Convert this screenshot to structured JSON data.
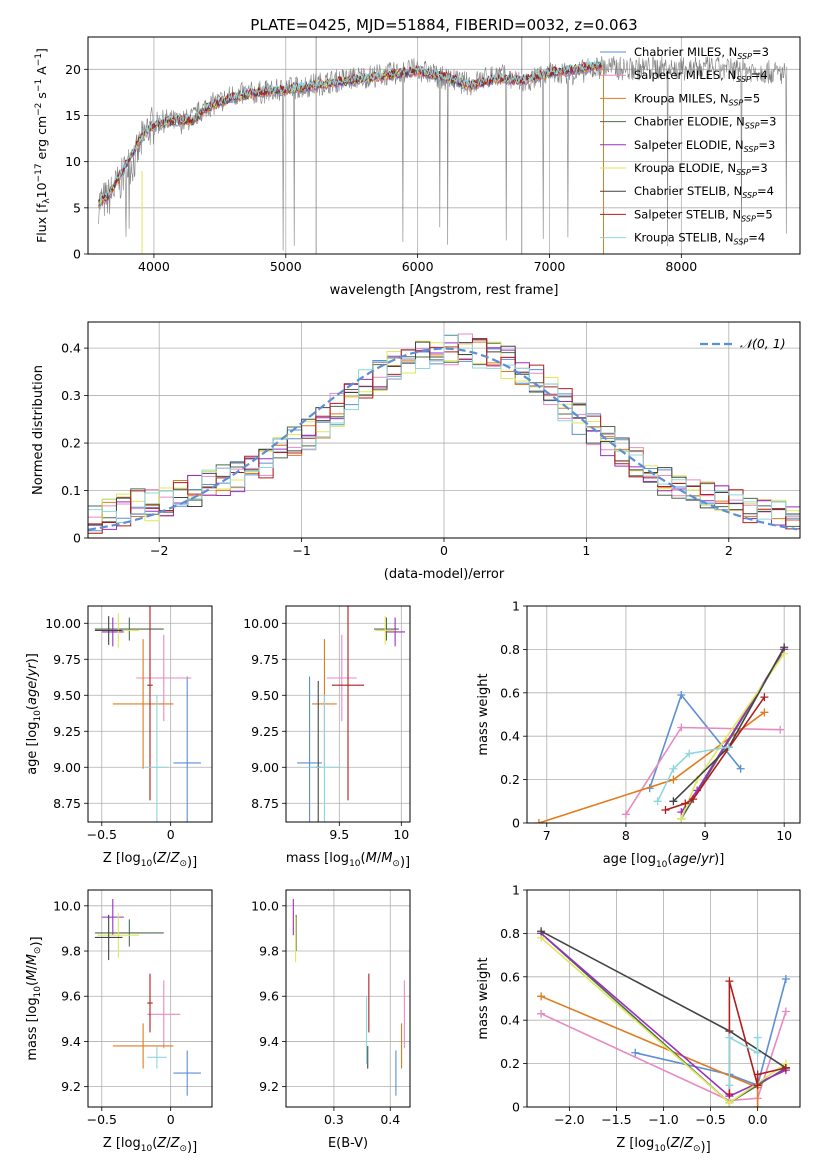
{
  "figure": {
    "title": "PLATE=0425, MJD=51884, FIBERID=0032, z=0.063",
    "colors": {
      "Chabrier MILES": "#5b8fd6",
      "Salpeter MILES": "#e88ac2",
      "Kroupa MILES": "#e07b1e",
      "Chabrier ELODIE": "#4f6b4f",
      "Salpeter ELODIE": "#9a2fc0",
      "Kroupa ELODIE": "#dde85a",
      "Chabrier STELIB": "#444444",
      "Salpeter STELIB": "#b01e1e",
      "Kroupa STELIB": "#8fd6dc",
      "data": "#808080",
      "normal": "#5b8fd6"
    }
  },
  "chart_data": [
    {
      "id": "spectrum",
      "type": "line",
      "xlabel": "wavelength [Angstrom, rest frame]",
      "ylabel": "Flux [f_λ 10^-17 erg cm^-2 s^-1 A^-1]",
      "ylabel_parts": {
        "a": "Flux [f",
        "b": "λ",
        "c": "10",
        "d": "−17",
        "e": " erg cm",
        "f": "−2",
        "g": " s",
        "h": "−1",
        "i": " A",
        "j": "−1",
        "k": "]"
      },
      "xlim": [
        3500,
        8900
      ],
      "ylim": [
        0,
        23.5
      ],
      "xticks": [
        4000,
        5000,
        6000,
        7000,
        8000
      ],
      "yticks": [
        0,
        5,
        10,
        15,
        20
      ],
      "legend": [
        {
          "name": "Chabrier MILES",
          "nssp": "3"
        },
        {
          "name": "Salpeter MILES",
          "nssp": "4"
        },
        {
          "name": "Kroupa MILES",
          "nssp": "5"
        },
        {
          "name": "Chabrier ELODIE",
          "nssp": "3"
        },
        {
          "name": "Salpeter ELODIE",
          "nssp": "3"
        },
        {
          "name": "Kroupa ELODIE",
          "nssp": "3"
        },
        {
          "name": "Chabrier STELIB",
          "nssp": "4"
        },
        {
          "name": "Salpeter STELIB",
          "nssp": "5"
        },
        {
          "name": "Kroupa STELIB",
          "nssp": "4"
        }
      ],
      "legend_prefix": ", N",
      "legend_sub": "SSP",
      "data_line": {
        "x": [
          3580,
          3650,
          3700,
          3750,
          3800,
          3850,
          3900,
          3950,
          4000,
          4100,
          4200,
          4300,
          4400,
          4500,
          4600,
          4800,
          5000,
          5200,
          5400,
          5600,
          5800,
          6000,
          6200,
          6400,
          6600,
          6800,
          7000,
          7200,
          7400,
          7600,
          7800,
          8000,
          8200,
          8400,
          8600,
          8800
        ],
        "y": [
          5.5,
          6.0,
          7.0,
          8.0,
          9.5,
          10.0,
          12.0,
          13.5,
          14.0,
          14.5,
          14.2,
          14.8,
          16.0,
          16.5,
          17.2,
          17.5,
          17.8,
          18.3,
          18.8,
          19.2,
          19.5,
          20.0,
          19.0,
          18.4,
          19.5,
          18.5,
          19.5,
          19.6,
          20.3,
          20.0,
          20.2,
          20.0,
          20.1,
          20.0,
          19.8,
          19.5
        ]
      },
      "model_line": {
        "x": [
          3580,
          3650,
          3700,
          3800,
          3900,
          4000,
          4100,
          4200,
          4300,
          4400,
          4600,
          4800,
          5000,
          5200,
          5400,
          5600,
          5800,
          6000,
          6200,
          6400,
          6600,
          6800,
          7000,
          7200,
          7400
        ],
        "y": [
          5.5,
          6.2,
          7.5,
          10.0,
          12.5,
          14.0,
          14.3,
          14.5,
          14.5,
          15.8,
          17.0,
          17.5,
          17.8,
          18.2,
          18.6,
          19.0,
          19.4,
          19.8,
          19.2,
          18.2,
          19.0,
          18.8,
          19.6,
          20.0,
          20.5
        ]
      }
    },
    {
      "id": "residuals",
      "type": "histogram",
      "xlabel": "(data-model)/error",
      "ylabel": "Normed distribution",
      "xlim": [
        -2.5,
        2.5
      ],
      "ylim": [
        0,
        0.455
      ],
      "xticks": [
        -2,
        -1,
        0,
        1,
        2
      ],
      "yticks": [
        0.0,
        0.1,
        0.2,
        0.3,
        0.4
      ],
      "legend": [
        {
          "name": "𝒩(0, 1)"
        }
      ],
      "bin_edges_start": -2.5,
      "bin_width": 0.1,
      "histogram_reference": [
        0.04,
        0.05,
        0.06,
        0.07,
        0.07,
        0.08,
        0.09,
        0.1,
        0.11,
        0.12,
        0.13,
        0.14,
        0.16,
        0.18,
        0.2,
        0.22,
        0.24,
        0.27,
        0.3,
        0.32,
        0.34,
        0.36,
        0.38,
        0.39,
        0.4,
        0.4,
        0.4,
        0.39,
        0.38,
        0.37,
        0.35,
        0.33,
        0.31,
        0.28,
        0.25,
        0.23,
        0.2,
        0.18,
        0.16,
        0.14,
        0.12,
        0.11,
        0.1,
        0.09,
        0.08,
        0.07,
        0.06,
        0.05,
        0.05,
        0.04
      ]
    },
    {
      "id": "age-vs-Z",
      "type": "scatter",
      "xlabel": "Z [log10(Z/Z⊙)]",
      "ylabel": "age [log10(age/yr)]",
      "xlim": [
        -0.6,
        0.3
      ],
      "ylim": [
        8.62,
        10.12
      ],
      "xticks": [
        -0.5,
        0.0
      ],
      "yticks": [
        8.75,
        9.0,
        9.25,
        9.5,
        9.75,
        10.0
      ],
      "ytick_labels": [
        "8.75",
        "9.00",
        "9.25",
        "9.50",
        "9.75",
        "10.00"
      ],
      "points": [
        {
          "series": "Chabrier MILES",
          "x": 0.12,
          "y": 9.03,
          "xerr": 0.1,
          "yerr": 0.6
        },
        {
          "series": "Salpeter MILES",
          "x": -0.05,
          "y": 9.62,
          "xerr": 0.2,
          "yerr": 0.3
        },
        {
          "series": "Kroupa MILES",
          "x": -0.2,
          "y": 9.44,
          "xerr": 0.22,
          "yerr": 0.45
        },
        {
          "series": "Chabrier ELODIE",
          "x": -0.3,
          "y": 9.96,
          "xerr": 0.25,
          "yerr": 0.08
        },
        {
          "series": "Salpeter ELODIE",
          "x": -0.42,
          "y": 9.94,
          "xerr": 0.08,
          "yerr": 0.1
        },
        {
          "series": "Kroupa ELODIE",
          "x": -0.38,
          "y": 9.95,
          "xerr": 0.15,
          "yerr": 0.12
        },
        {
          "series": "Chabrier STELIB",
          "x": -0.45,
          "y": 9.95,
          "xerr": 0.1,
          "yerr": 0.1
        },
        {
          "series": "Salpeter STELIB",
          "x": -0.15,
          "y": 9.57,
          "xerr": 0.02,
          "yerr": 0.8
        },
        {
          "series": "Kroupa STELIB",
          "x": -0.1,
          "y": 9.0,
          "xerr": 0.08,
          "yerr": 0.5
        }
      ]
    },
    {
      "id": "age-vs-mass",
      "type": "scatter",
      "xlabel": "mass [log10(M/M⊙)]",
      "ylabel": "",
      "xlim": [
        9.07,
        10.07
      ],
      "ylim": [
        8.62,
        10.12
      ],
      "xticks": [
        9.5,
        10.0
      ],
      "yticks": [
        8.75,
        9.0,
        9.25,
        9.5,
        9.75,
        10.0
      ],
      "ytick_labels": [
        "8.75",
        "9.00",
        "9.25",
        "9.50",
        "9.75",
        "10.00"
      ],
      "points": [
        {
          "series": "Chabrier MILES",
          "x": 9.26,
          "y": 9.03,
          "xerr": 0.1,
          "yerr": 0.6
        },
        {
          "series": "Salpeter MILES",
          "x": 9.52,
          "y": 9.62,
          "xerr": 0.12,
          "yerr": 0.3
        },
        {
          "series": "Kroupa MILES",
          "x": 9.38,
          "y": 9.44,
          "xerr": 0.1,
          "yerr": 0.45
        },
        {
          "series": "Chabrier ELODIE",
          "x": 9.88,
          "y": 9.96,
          "xerr": 0.1,
          "yerr": 0.08
        },
        {
          "series": "Salpeter ELODIE",
          "x": 9.95,
          "y": 9.94,
          "xerr": 0.08,
          "yerr": 0.1
        },
        {
          "series": "Kroupa ELODIE",
          "x": 9.87,
          "y": 9.95,
          "xerr": 0.08,
          "yerr": 0.1
        },
        {
          "series": "Chabrier STELIB",
          "x": 9.33,
          "y": 9.0,
          "xerr": 0.02,
          "yerr": 0.6
        },
        {
          "series": "Salpeter STELIB",
          "x": 9.57,
          "y": 9.57,
          "xerr": 0.13,
          "yerr": 0.8
        },
        {
          "series": "Kroupa STELIB",
          "x": 9.38,
          "y": 9.0,
          "xerr": 0.12,
          "yerr": 0.5
        }
      ]
    },
    {
      "id": "weight-vs-age",
      "type": "line",
      "xlabel": "age [log10(age/yr)]",
      "ylabel": "mass weight",
      "xlim": [
        6.75,
        10.2
      ],
      "ylim": [
        0,
        1.0
      ],
      "xticks": [
        7,
        8,
        9,
        10
      ],
      "yticks": [
        0.0,
        0.2,
        0.4,
        0.6,
        0.8,
        1.0
      ],
      "series": [
        {
          "name": "Chabrier MILES",
          "x": [
            8.3,
            8.7,
            9.45
          ],
          "y": [
            0.16,
            0.59,
            0.25
          ]
        },
        {
          "name": "Salpeter MILES",
          "x": [
            8.0,
            8.7,
            9.95
          ],
          "y": [
            0.04,
            0.44,
            0.43
          ]
        },
        {
          "name": "Kroupa MILES",
          "x": [
            6.9,
            8.6,
            9.75
          ],
          "y": [
            0.0,
            0.2,
            0.51
          ]
        },
        {
          "name": "Chabrier ELODIE",
          "x": [
            8.7,
            10.0
          ],
          "y": [
            0.02,
            0.8
          ]
        },
        {
          "name": "Salpeter ELODIE",
          "x": [
            8.7,
            8.9,
            10.0
          ],
          "y": [
            0.05,
            0.15,
            0.8
          ]
        },
        {
          "name": "Kroupa ELODIE",
          "x": [
            8.7,
            8.9,
            10.0
          ],
          "y": [
            0.02,
            0.2,
            0.78
          ]
        },
        {
          "name": "Chabrier STELIB",
          "x": [
            8.6,
            9.3,
            10.0
          ],
          "y": [
            0.1,
            0.35,
            0.81
          ]
        },
        {
          "name": "Salpeter STELIB",
          "x": [
            8.5,
            8.75,
            8.85,
            9.75
          ],
          "y": [
            0.06,
            0.09,
            0.11,
            0.58
          ]
        },
        {
          "name": "Kroupa STELIB",
          "x": [
            8.4,
            8.6,
            8.8,
            9.3
          ],
          "y": [
            0.1,
            0.25,
            0.32,
            0.35
          ]
        }
      ]
    },
    {
      "id": "mass-vs-Z",
      "type": "scatter",
      "xlabel": "Z [log10(Z/Z⊙)]",
      "ylabel": "mass [log10(M/M⊙)]",
      "xlim": [
        -0.6,
        0.3
      ],
      "ylim": [
        9.11,
        10.07
      ],
      "xticks": [
        -0.5,
        0.0
      ],
      "yticks": [
        9.2,
        9.4,
        9.6,
        9.8,
        10.0
      ],
      "ytick_labels": [
        "9.2",
        "9.4",
        "9.6",
        "9.8",
        "10.0"
      ],
      "points": [
        {
          "series": "Chabrier MILES",
          "x": 0.12,
          "y": 9.26,
          "xerr": 0.1,
          "yerr": 0.1
        },
        {
          "series": "Salpeter MILES",
          "x": -0.05,
          "y": 9.52,
          "xerr": 0.12,
          "yerr": 0.15
        },
        {
          "series": "Kroupa MILES",
          "x": -0.2,
          "y": 9.38,
          "xerr": 0.22,
          "yerr": 0.1
        },
        {
          "series": "Chabrier ELODIE",
          "x": -0.3,
          "y": 9.88,
          "xerr": 0.25,
          "yerr": 0.06
        },
        {
          "series": "Salpeter ELODIE",
          "x": -0.42,
          "y": 9.95,
          "xerr": 0.08,
          "yerr": 0.08
        },
        {
          "series": "Kroupa ELODIE",
          "x": -0.38,
          "y": 9.87,
          "xerr": 0.15,
          "yerr": 0.1
        },
        {
          "series": "Chabrier STELIB",
          "x": -0.45,
          "y": 9.86,
          "xerr": 0.1,
          "yerr": 0.1
        },
        {
          "series": "Salpeter STELIB",
          "x": -0.15,
          "y": 9.57,
          "xerr": 0.02,
          "yerr": 0.13
        },
        {
          "series": "Kroupa STELIB",
          "x": -0.1,
          "y": 9.33,
          "xerr": 0.07,
          "yerr": 0.05
        }
      ]
    },
    {
      "id": "mass-vs-EBV",
      "type": "scatter",
      "xlabel": "E(B-V)",
      "ylabel": "",
      "xlim": [
        0.215,
        0.435
      ],
      "ylim": [
        9.11,
        10.07
      ],
      "xticks": [
        0.3,
        0.4
      ],
      "yticks": [
        9.2,
        9.4,
        9.6,
        9.8,
        10.0
      ],
      "ytick_labels": [
        "9.2",
        "9.4",
        "9.6",
        "9.8",
        "10.0"
      ],
      "points": [
        {
          "series": "Chabrier MILES",
          "x": 0.41,
          "y": 9.26,
          "xerr": 0.0,
          "yerr": 0.1
        },
        {
          "series": "Salpeter MILES",
          "x": 0.425,
          "y": 9.52,
          "xerr": 0.0,
          "yerr": 0.15
        },
        {
          "series": "Kroupa MILES",
          "x": 0.42,
          "y": 9.38,
          "xerr": 0.0,
          "yerr": 0.1
        },
        {
          "series": "Chabrier ELODIE",
          "x": 0.233,
          "y": 9.88,
          "xerr": 0.0,
          "yerr": 0.08
        },
        {
          "series": "Salpeter ELODIE",
          "x": 0.228,
          "y": 9.95,
          "xerr": 0.0,
          "yerr": 0.08
        },
        {
          "series": "Kroupa ELODIE",
          "x": 0.232,
          "y": 9.85,
          "xerr": 0.0,
          "yerr": 0.1
        },
        {
          "series": "Chabrier STELIB",
          "x": 0.36,
          "y": 9.33,
          "xerr": 0.0,
          "yerr": 0.05
        },
        {
          "series": "Salpeter STELIB",
          "x": 0.362,
          "y": 9.57,
          "xerr": 0.0,
          "yerr": 0.13
        },
        {
          "series": "Kroupa STELIB",
          "x": 0.358,
          "y": 9.45,
          "xerr": 0.0,
          "yerr": 0.15
        }
      ]
    },
    {
      "id": "weight-vs-Z",
      "type": "line",
      "xlabel": "Z [log10(Z/Z⊙)]",
      "ylabel": "mass weight",
      "xlim": [
        -2.45,
        0.45
      ],
      "ylim": [
        0,
        1.0
      ],
      "xticks": [
        -2.0,
        -1.5,
        -1.0,
        -0.5,
        0.0
      ],
      "xtick_labels": [
        "−2.0",
        "−1.5",
        "−1.0",
        "−0.5",
        "0.0"
      ],
      "yticks": [
        0.0,
        0.2,
        0.4,
        0.6,
        0.8,
        1.0
      ],
      "series": [
        {
          "name": "Chabrier MILES",
          "x": [
            -1.3,
            -0.3,
            0.0,
            0.3
          ],
          "y": [
            0.25,
            0.15,
            0.1,
            0.59
          ]
        },
        {
          "name": "Salpeter MILES",
          "x": [
            -2.3,
            -0.3,
            0.0,
            0.3
          ],
          "y": [
            0.43,
            0.03,
            0.04,
            0.44
          ]
        },
        {
          "name": "Kroupa MILES",
          "x": [
            -2.3,
            0.0,
            0.0
          ],
          "y": [
            0.51,
            0.09,
            0.0
          ]
        },
        {
          "name": "Chabrier ELODIE",
          "x": [
            -2.3,
            -0.3,
            0.3
          ],
          "y": [
            0.8,
            0.02,
            0.18
          ]
        },
        {
          "name": "Salpeter ELODIE",
          "x": [
            -2.3,
            -0.3,
            0.3
          ],
          "y": [
            0.8,
            0.05,
            0.17
          ]
        },
        {
          "name": "Kroupa ELODIE",
          "x": [
            -2.3,
            -0.3,
            0.3
          ],
          "y": [
            0.78,
            0.02,
            0.2
          ]
        },
        {
          "name": "Chabrier STELIB",
          "x": [
            -2.3,
            -0.3,
            0.3
          ],
          "y": [
            0.81,
            0.35,
            0.18
          ]
        },
        {
          "name": "Salpeter STELIB",
          "x": [
            -0.3,
            -0.3,
            0.0,
            0.0,
            0.3
          ],
          "y": [
            0.06,
            0.58,
            0.1,
            0.15,
            0.18
          ]
        },
        {
          "name": "Kroupa STELIB",
          "x": [
            -0.3,
            -0.3,
            0.0,
            0.0
          ],
          "y": [
            0.1,
            0.32,
            0.25,
            0.32
          ]
        }
      ]
    }
  ]
}
